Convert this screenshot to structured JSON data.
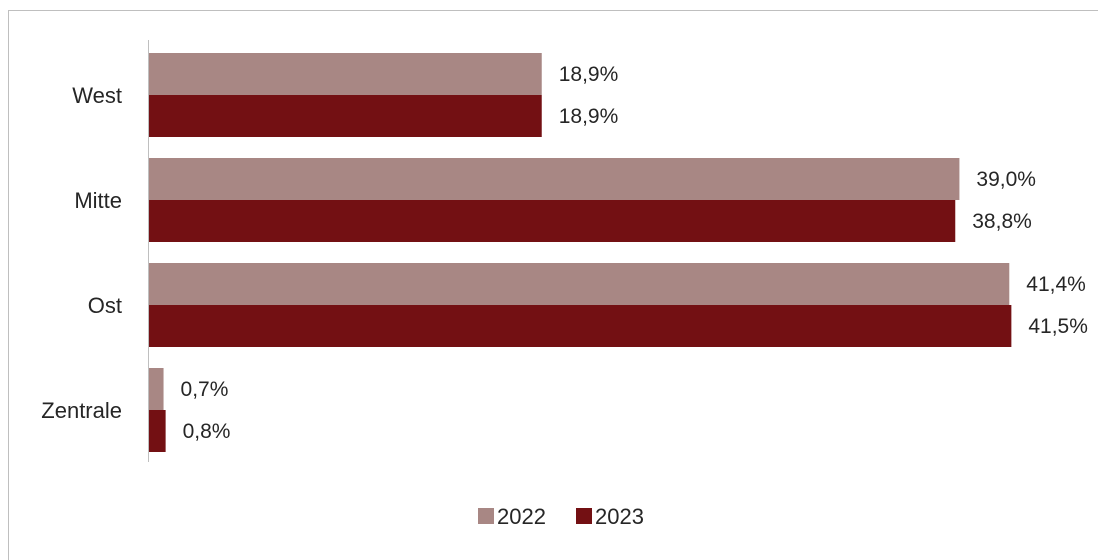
{
  "chart_data": {
    "type": "bar",
    "orientation": "horizontal",
    "categories": [
      "West",
      "Mitte",
      "Ost",
      "Zentrale"
    ],
    "series": [
      {
        "name": "2022",
        "values": [
          18.9,
          39.0,
          41.4,
          0.7
        ],
        "labels": [
          "18,9%",
          "39,0%",
          "41,4%",
          "0,7%"
        ],
        "color": "#a88784"
      },
      {
        "name": "2023",
        "values": [
          18.9,
          38.8,
          41.5,
          0.8
        ],
        "labels": [
          "18,9%",
          "38,8%",
          "41,5%",
          "0,8%"
        ],
        "color": "#731013"
      }
    ],
    "xlim": [
      0,
      45
    ],
    "grid": false,
    "legend_position": "bottom-center"
  }
}
